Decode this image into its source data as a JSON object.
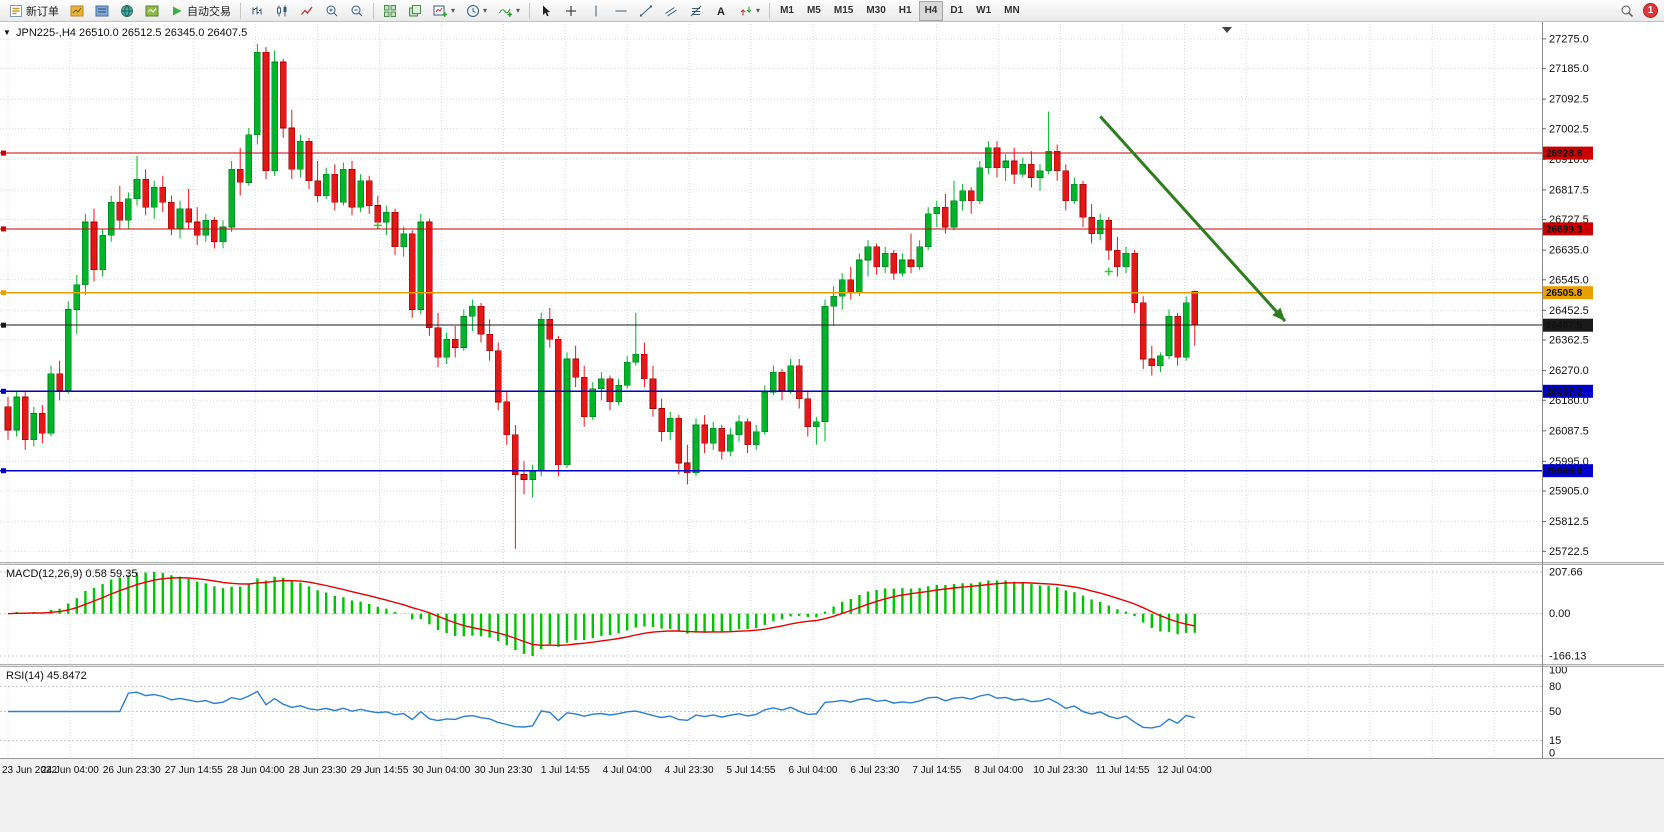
{
  "toolbar": {
    "new_order_label": "新订单",
    "auto_trading_label": "自动交易",
    "timeframes": [
      "M1",
      "M5",
      "M15",
      "M30",
      "H1",
      "H4",
      "D1",
      "W1",
      "MN"
    ],
    "active_timeframe": "H4",
    "notification_count": "1"
  },
  "chart": {
    "symbol_label": "JPN225-,H4",
    "ohlc": "26510.0 26512.5 26345.0 26407.5",
    "price_axis": [
      "27275.0",
      "27185.0",
      "27092.5",
      "27002.5",
      "26910.0",
      "26817.5",
      "26727.5",
      "26635.0",
      "26545.0",
      "26452.5",
      "26362.5",
      "26270.0",
      "26180.0",
      "26087.5",
      "25995.0",
      "25905.0",
      "25812.5",
      "25722.5"
    ],
    "time_axis": [
      "23 Jun 2022",
      "24 Jun 04:00",
      "26 Jun 23:30",
      "27 Jun 14:55",
      "28 Jun 04:00",
      "28 Jun 23:30",
      "29 Jun 14:55",
      "30 Jun 04:00",
      "30 Jun 23:30",
      "1 Jul 14:55",
      "4 Jul 04:00",
      "4 Jul 23:30",
      "5 Jul 14:55",
      "6 Jul 04:00",
      "6 Jul 23:30",
      "7 Jul 14:55",
      "8 Jul 04:00",
      "10 Jul 23:30",
      "11 Jul 14:55",
      "12 Jul 04:00"
    ],
    "hlines": [
      {
        "price": 26928.8,
        "label": "26928.8",
        "color": "#cc0000",
        "width": 1.2
      },
      {
        "price": 26699.3,
        "label": "26699.3",
        "color": "#cc0000",
        "width": 1.2
      },
      {
        "price": 26505.8,
        "label": "26505.8",
        "color": "#e8a000",
        "width": 1.6
      },
      {
        "price": 26407.5,
        "label": "26407.5",
        "color": "#1a1a1a",
        "width": 1,
        "current": true
      },
      {
        "price": 26207.2,
        "label": "26207.2",
        "color": "#0000c8",
        "width": 1.6
      },
      {
        "price": 25966.6,
        "label": "25966.6",
        "color": "#0000c8",
        "width": 1.6
      }
    ],
    "arrow": {
      "from_candle": 127,
      "from_price": 27040,
      "to_candle": 148.5,
      "to_price": 26420,
      "color": "#2e7d1e"
    },
    "trade_markers": [
      {
        "candle": 43,
        "price": 26710
      },
      {
        "candle": 128,
        "price": 26570
      }
    ],
    "marker_color": "#39c539"
  },
  "macd": {
    "label": "MACD(12,26,9) 0.58 59.35",
    "axis": [
      "207.66",
      "0.00",
      "-166.13"
    ],
    "histogram_color": "#00c400",
    "signal_color": "#e60000"
  },
  "rsi": {
    "label": "RSI(14) 45.8472",
    "axis": [
      "100",
      "80",
      "50",
      "15",
      "0"
    ],
    "line_color": "#2a7fd0"
  },
  "chart_data": {
    "type": "candlestick",
    "symbol": "JPN225-",
    "timeframe": "H4",
    "ohlc_display": {
      "open": "26510.0",
      "high": "26512.5",
      "low": "26345.0",
      "close": "26407.5"
    },
    "price_range": [
      25722.5,
      27275.0
    ],
    "bull_color": "#00b42a",
    "bear_color": "#e61717",
    "candles": [
      [
        26160,
        26190,
        26060,
        26090
      ],
      [
        26090,
        26210,
        26070,
        26190
      ],
      [
        26190,
        26205,
        26030,
        26060
      ],
      [
        26060,
        26160,
        26040,
        26140
      ],
      [
        26140,
        26165,
        26050,
        26080
      ],
      [
        26080,
        26285,
        26070,
        26260
      ],
      [
        26260,
        26300,
        26180,
        26210
      ],
      [
        26210,
        26480,
        26200,
        26455
      ],
      [
        26455,
        26560,
        26380,
        26530
      ],
      [
        26530,
        26745,
        26500,
        26720
      ],
      [
        26720,
        26760,
        26540,
        26575
      ],
      [
        26575,
        26700,
        26555,
        26680
      ],
      [
        26680,
        26800,
        26660,
        26780
      ],
      [
        26780,
        26830,
        26700,
        26725
      ],
      [
        26725,
        26810,
        26700,
        26790
      ],
      [
        26790,
        26920,
        26770,
        26850
      ],
      [
        26850,
        26880,
        26740,
        26765
      ],
      [
        26765,
        26845,
        26730,
        26825
      ],
      [
        26825,
        26860,
        26750,
        26780
      ],
      [
        26780,
        26800,
        26680,
        26700
      ],
      [
        26700,
        26785,
        26670,
        26760
      ],
      [
        26760,
        26820,
        26700,
        26720
      ],
      [
        26720,
        26765,
        26650,
        26680
      ],
      [
        26680,
        26745,
        26660,
        26725
      ],
      [
        26725,
        26735,
        26640,
        26660
      ],
      [
        26660,
        26725,
        26640,
        26705
      ],
      [
        26705,
        26905,
        26690,
        26880
      ],
      [
        26880,
        26945,
        26800,
        26840
      ],
      [
        26840,
        27005,
        26830,
        26985
      ],
      [
        26985,
        27260,
        26955,
        27235
      ],
      [
        27235,
        27250,
        26850,
        26875
      ],
      [
        26875,
        27240,
        26860,
        27205
      ],
      [
        27205,
        27215,
        26975,
        27005
      ],
      [
        27005,
        27060,
        26850,
        26880
      ],
      [
        26880,
        26985,
        26855,
        26965
      ],
      [
        26965,
        26975,
        26820,
        26845
      ],
      [
        26845,
        26905,
        26780,
        26800
      ],
      [
        26800,
        26885,
        26790,
        26865
      ],
      [
        26865,
        26895,
        26755,
        26780
      ],
      [
        26780,
        26900,
        26770,
        26880
      ],
      [
        26880,
        26905,
        26740,
        26765
      ],
      [
        26765,
        26865,
        26750,
        26845
      ],
      [
        26845,
        26860,
        26745,
        26770
      ],
      [
        26770,
        26800,
        26700,
        26720
      ],
      [
        26720,
        26770,
        26680,
        26750
      ],
      [
        26750,
        26760,
        26620,
        26645
      ],
      [
        26645,
        26705,
        26615,
        26685
      ],
      [
        26685,
        26695,
        26430,
        26455
      ],
      [
        26455,
        26745,
        26440,
        26720
      ],
      [
        26720,
        26730,
        26375,
        26400
      ],
      [
        26400,
        26445,
        26280,
        26310
      ],
      [
        26310,
        26385,
        26290,
        26365
      ],
      [
        26365,
        26405,
        26310,
        26340
      ],
      [
        26340,
        26455,
        26330,
        26435
      ],
      [
        26435,
        26485,
        26390,
        26465
      ],
      [
        26465,
        26475,
        26355,
        26380
      ],
      [
        26380,
        26425,
        26300,
        26330
      ],
      [
        26330,
        26355,
        26150,
        26175
      ],
      [
        26175,
        26205,
        26045,
        26075
      ],
      [
        26075,
        26105,
        25730,
        25955
      ],
      [
        25955,
        25995,
        25895,
        25940
      ],
      [
        25940,
        25985,
        25885,
        25965
      ],
      [
        25965,
        26445,
        25950,
        26425
      ],
      [
        26425,
        26460,
        26340,
        26365
      ],
      [
        26365,
        26375,
        25950,
        25985
      ],
      [
        25985,
        26325,
        25975,
        26305
      ],
      [
        26305,
        26345,
        26220,
        26250
      ],
      [
        26250,
        26285,
        26100,
        26130
      ],
      [
        26130,
        26235,
        26120,
        26215
      ],
      [
        26215,
        26265,
        26180,
        26245
      ],
      [
        26245,
        26255,
        26150,
        26175
      ],
      [
        26175,
        26245,
        26165,
        26225
      ],
      [
        26225,
        26315,
        26215,
        26295
      ],
      [
        26295,
        26445,
        26285,
        26320
      ],
      [
        26320,
        26355,
        26220,
        26245
      ],
      [
        26245,
        26285,
        26130,
        26155
      ],
      [
        26155,
        26185,
        26055,
        26085
      ],
      [
        26085,
        26145,
        26060,
        26125
      ],
      [
        26125,
        26135,
        25955,
        25990
      ],
      [
        25990,
        26045,
        25925,
        25960
      ],
      [
        25960,
        26125,
        25950,
        26105
      ],
      [
        26105,
        26135,
        26020,
        26050
      ],
      [
        26050,
        26115,
        26030,
        26095
      ],
      [
        26095,
        26105,
        26000,
        26025
      ],
      [
        26025,
        26095,
        26010,
        26075
      ],
      [
        26075,
        26135,
        26055,
        26115
      ],
      [
        26115,
        26125,
        26020,
        26045
      ],
      [
        26045,
        26105,
        26030,
        26085
      ],
      [
        26085,
        26225,
        26075,
        26205
      ],
      [
        26205,
        26285,
        26195,
        26265
      ],
      [
        26265,
        26275,
        26180,
        26210
      ],
      [
        26210,
        26305,
        26200,
        26285
      ],
      [
        26285,
        26305,
        26155,
        26185
      ],
      [
        26185,
        26205,
        26070,
        26100
      ],
      [
        26100,
        26130,
        26045,
        26115
      ],
      [
        26115,
        26485,
        26055,
        26465
      ],
      [
        26465,
        26525,
        26405,
        26495
      ],
      [
        26495,
        26565,
        26455,
        26545
      ],
      [
        26545,
        26585,
        26485,
        26505
      ],
      [
        26505,
        26625,
        26495,
        26605
      ],
      [
        26605,
        26665,
        26555,
        26645
      ],
      [
        26645,
        26655,
        26560,
        26585
      ],
      [
        26585,
        26645,
        26565,
        26625
      ],
      [
        26625,
        26635,
        26545,
        26565
      ],
      [
        26565,
        26625,
        26555,
        26605
      ],
      [
        26605,
        26685,
        26565,
        26585
      ],
      [
        26585,
        26665,
        26575,
        26645
      ],
      [
        26645,
        26765,
        26635,
        26745
      ],
      [
        26745,
        26785,
        26705,
        26765
      ],
      [
        26765,
        26805,
        26685,
        26705
      ],
      [
        26705,
        26845,
        26695,
        26785
      ],
      [
        26785,
        26835,
        26755,
        26815
      ],
      [
        26815,
        26825,
        26745,
        26785
      ],
      [
        26785,
        26905,
        26775,
        26885
      ],
      [
        26885,
        26965,
        26865,
        26945
      ],
      [
        26945,
        26965,
        26855,
        26885
      ],
      [
        26885,
        26925,
        26845,
        26905
      ],
      [
        26905,
        26945,
        26835,
        26865
      ],
      [
        26865,
        26915,
        26855,
        26895
      ],
      [
        26895,
        26935,
        26825,
        26855
      ],
      [
        26855,
        26895,
        26815,
        26875
      ],
      [
        26875,
        27055,
        26865,
        26935
      ],
      [
        26935,
        26955,
        26845,
        26875
      ],
      [
        26875,
        26895,
        26755,
        26785
      ],
      [
        26785,
        26855,
        26775,
        26835
      ],
      [
        26835,
        26845,
        26705,
        26735
      ],
      [
        26735,
        26775,
        26655,
        26685
      ],
      [
        26685,
        26745,
        26665,
        26725
      ],
      [
        26725,
        26735,
        26605,
        26635
      ],
      [
        26635,
        26675,
        26555,
        26585
      ],
      [
        26585,
        26645,
        26565,
        26625
      ],
      [
        26625,
        26635,
        26445,
        26475
      ],
      [
        26475,
        26495,
        26275,
        26305
      ],
      [
        26305,
        26345,
        26255,
        26285
      ],
      [
        26285,
        26325,
        26265,
        26315
      ],
      [
        26315,
        26455,
        26305,
        26435
      ],
      [
        26435,
        26445,
        26285,
        26310
      ],
      [
        26310,
        26495,
        26300,
        26475
      ],
      [
        26510,
        26512.5,
        26345,
        26407.5
      ]
    ],
    "indicators": [
      {
        "name": "MACD",
        "params": [
          12,
          26,
          9
        ],
        "values_label": "0.58 59.35",
        "axis": [
          207.66,
          0,
          -166.13
        ]
      },
      {
        "name": "RSI",
        "params": [
          14
        ],
        "value": 45.8472,
        "levels": [
          80,
          50,
          15
        ]
      }
    ]
  }
}
